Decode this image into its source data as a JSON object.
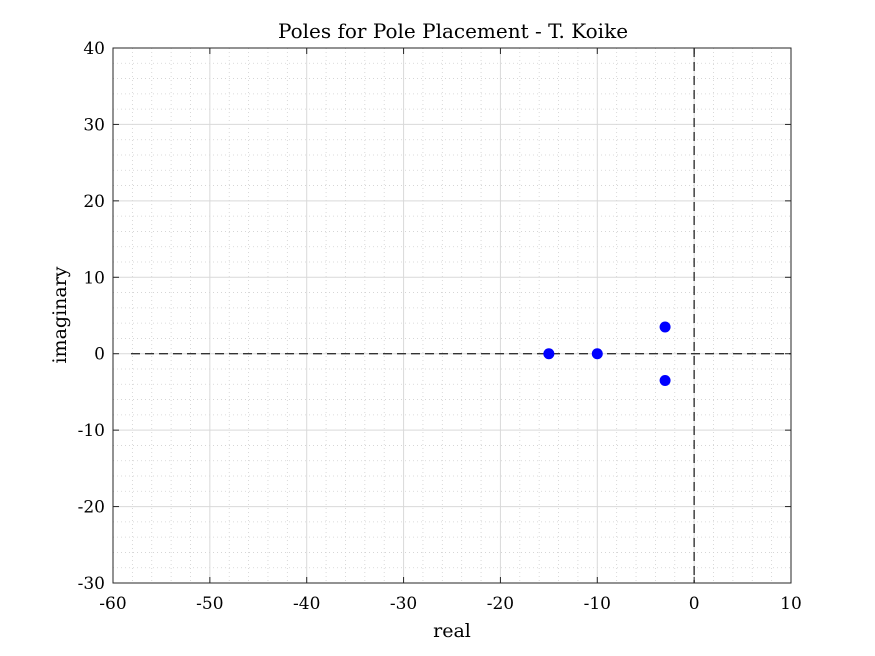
{
  "chart_data": {
    "type": "scatter",
    "title": "Poles for Pole Placement - T. Koike",
    "xlabel": "real",
    "ylabel": "imaginary",
    "xlim": [
      -60,
      10
    ],
    "ylim": [
      -30,
      40
    ],
    "xticks": [
      -60,
      -50,
      -40,
      -30,
      -20,
      -10,
      0,
      10
    ],
    "yticks": [
      -30,
      -20,
      -10,
      0,
      10,
      20,
      30,
      40
    ],
    "xtick_labels": [
      "-60",
      "-50",
      "-40",
      "-30",
      "-20",
      "-10",
      "0",
      "10"
    ],
    "ytick_labels": [
      "-30",
      "-20",
      "-10",
      "0",
      "10",
      "20",
      "30",
      "40"
    ],
    "x_minor_step": 2,
    "y_minor_step": 2,
    "grid": true,
    "minor_grid": true,
    "reference_lines": [
      {
        "orientation": "vertical",
        "value": 0
      },
      {
        "orientation": "horizontal",
        "value": 0
      }
    ],
    "series": [
      {
        "color": "#0000ff",
        "points": [
          {
            "x": -15,
            "y": 0
          },
          {
            "x": -10,
            "y": 0
          },
          {
            "x": -3,
            "y": 3.5
          },
          {
            "x": -3,
            "y": -3.5
          }
        ]
      }
    ]
  }
}
